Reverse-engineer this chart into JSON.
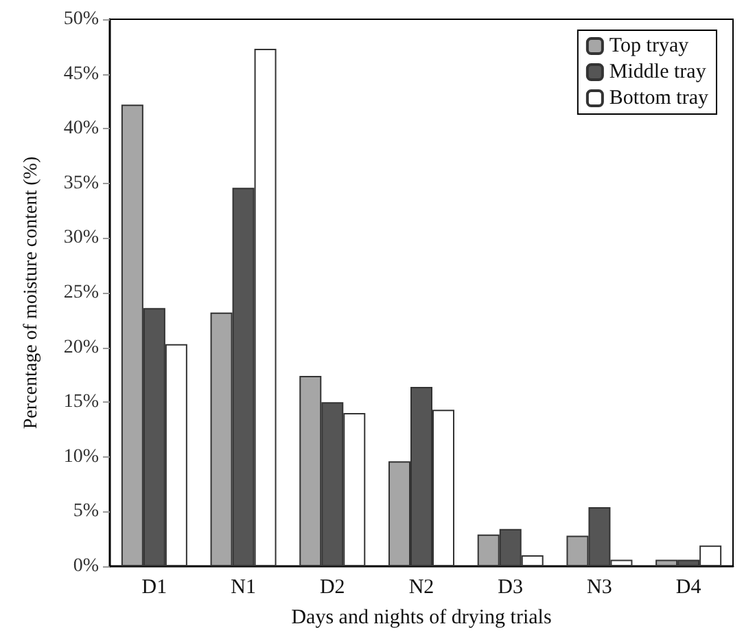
{
  "chart_data": {
    "type": "bar",
    "xlabel": "Days and nights of drying trials",
    "ylabel": "Percentage of moisture content (%)",
    "categories": [
      "D1",
      "N1",
      "D2",
      "N2",
      "D3",
      "N3",
      "D4"
    ],
    "series": [
      {
        "name": "Top tryay",
        "color": "#a6a6a6",
        "values": [
          42.2,
          23.2,
          17.4,
          9.6,
          2.9,
          2.8,
          0.6
        ]
      },
      {
        "name": "Middle tray",
        "color": "#555555",
        "values": [
          23.6,
          34.6,
          15,
          16.4,
          3.4,
          5.4,
          0.6
        ]
      },
      {
        "name": "Bottom tray",
        "color": "#ffffff",
        "values": [
          20.3,
          47.3,
          14,
          14.3,
          1,
          0.6,
          1.9
        ]
      }
    ],
    "ylim": [
      0,
      50
    ],
    "yticks": [
      {
        "value": 0,
        "label": "0%"
      },
      {
        "value": 5,
        "label": "5%"
      },
      {
        "value": 10,
        "label": "10%"
      },
      {
        "value": 15,
        "label": "15%"
      },
      {
        "value": 20,
        "label": "20%"
      },
      {
        "value": 25,
        "label": "25%"
      },
      {
        "value": 30,
        "label": "30%"
      },
      {
        "value": 35,
        "label": "35%"
      },
      {
        "value": 40,
        "label": "40%"
      },
      {
        "value": 45,
        "label": "45%"
      },
      {
        "value": 50,
        "label": "50%"
      }
    ],
    "grid": false,
    "legend": "top right"
  }
}
